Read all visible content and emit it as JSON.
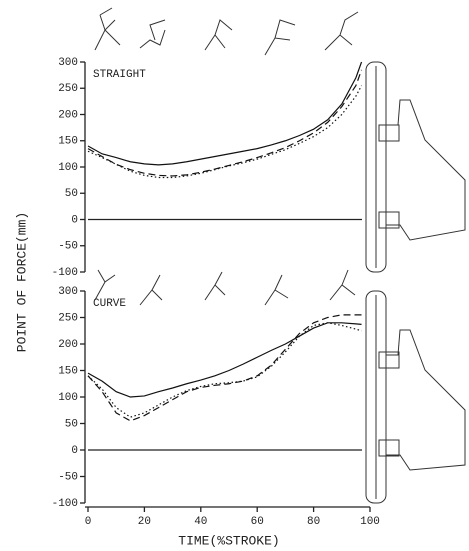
{
  "chart_data": [
    {
      "type": "line",
      "title": "STRAIGHT",
      "ylabel": "POINT OF FORCE(mm)",
      "x": [
        0,
        5,
        10,
        15,
        20,
        25,
        30,
        35,
        40,
        45,
        50,
        55,
        60,
        65,
        70,
        75,
        80,
        85,
        90,
        95,
        97
      ],
      "series": [
        {
          "color": "#111",
          "style": "solid",
          "values": [
            140,
            125,
            118,
            110,
            106,
            104,
            106,
            110,
            115,
            120,
            125,
            130,
            135,
            142,
            150,
            160,
            172,
            190,
            220,
            270,
            300
          ]
        },
        {
          "color": "#111",
          "style": "dashed",
          "values": [
            135,
            120,
            105,
            95,
            88,
            84,
            83,
            85,
            90,
            96,
            103,
            110,
            118,
            127,
            137,
            150,
            165,
            185,
            215,
            255,
            285
          ]
        },
        {
          "color": "#111",
          "style": "dotted",
          "values": [
            130,
            118,
            105,
            92,
            84,
            80,
            80,
            83,
            88,
            95,
            102,
            108,
            115,
            124,
            133,
            145,
            158,
            175,
            200,
            235,
            255
          ]
        }
      ],
      "xlim": [
        0,
        100
      ],
      "ylim": [
        -100,
        300
      ],
      "yticks": [
        -100,
        -50,
        0,
        50,
        100,
        150,
        200,
        250,
        300
      ],
      "zero_line": true
    },
    {
      "type": "line",
      "title": "CURVE",
      "xlabel": "TIME(%STROKE)",
      "x": [
        0,
        5,
        10,
        15,
        20,
        25,
        30,
        35,
        40,
        45,
        50,
        55,
        60,
        65,
        70,
        75,
        80,
        85,
        90,
        95,
        97
      ],
      "series": [
        {
          "color": "#111",
          "style": "solid",
          "values": [
            145,
            130,
            110,
            100,
            102,
            110,
            117,
            125,
            132,
            140,
            150,
            162,
            175,
            188,
            200,
            215,
            230,
            240,
            240,
            238,
            237
          ]
        },
        {
          "color": "#111",
          "style": "dashed",
          "values": [
            140,
            110,
            70,
            55,
            65,
            80,
            95,
            110,
            118,
            122,
            125,
            130,
            140,
            160,
            190,
            220,
            240,
            250,
            255,
            255,
            255
          ]
        },
        {
          "color": "#111",
          "style": "dotted",
          "values": [
            140,
            115,
            80,
            62,
            70,
            85,
            100,
            112,
            120,
            125,
            127,
            130,
            138,
            158,
            185,
            215,
            235,
            240,
            235,
            228,
            225
          ]
        }
      ],
      "xlim": [
        0,
        100
      ],
      "ylim": [
        -100,
        300
      ],
      "yticks": [
        -100,
        -50,
        0,
        50,
        100,
        150,
        200,
        250,
        300
      ],
      "xticks": [
        0,
        20,
        40,
        60,
        80,
        100
      ],
      "zero_line": true
    }
  ]
}
